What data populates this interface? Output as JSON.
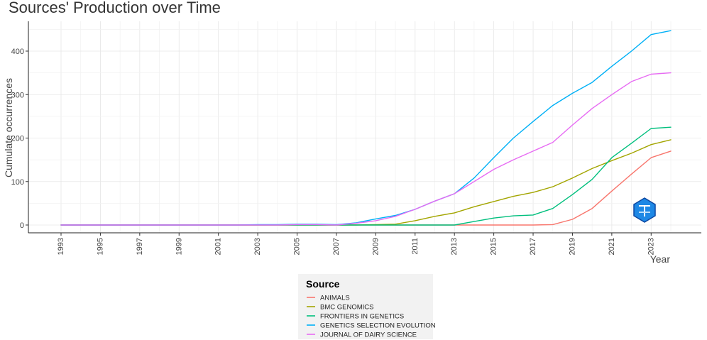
{
  "chart_data": {
    "type": "line",
    "title": "Sources' Production over Time",
    "xlabel": "Year",
    "ylabel": "Cumulate occurrences",
    "xlim": [
      1993,
      2024
    ],
    "ylim": [
      0,
      450
    ],
    "x_tick_labels": [
      "1993",
      "1995",
      "1997",
      "1999",
      "2001",
      "2003",
      "2005",
      "2007",
      "2009",
      "2011",
      "2013",
      "2015",
      "2017",
      "2019",
      "2021",
      "2023"
    ],
    "y_tick_labels": [
      "0",
      "100",
      "200",
      "300",
      "400"
    ],
    "grid": true,
    "legend": {
      "title": "Source",
      "position": "bottom"
    },
    "x": [
      1993,
      1994,
      1995,
      1996,
      1997,
      1998,
      1999,
      2000,
      2001,
      2002,
      2003,
      2004,
      2005,
      2006,
      2007,
      2008,
      2009,
      2010,
      2011,
      2012,
      2013,
      2014,
      2015,
      2016,
      2017,
      2018,
      2019,
      2020,
      2021,
      2022,
      2023,
      2024
    ],
    "series": [
      {
        "name": "ANIMALS",
        "color": "#F8766D",
        "values": [
          0,
          0,
          0,
          0,
          0,
          0,
          0,
          0,
          0,
          0,
          0,
          0,
          0,
          0,
          0,
          0,
          0,
          0,
          0,
          0,
          0,
          0,
          0,
          0,
          0,
          1,
          13,
          38,
          78,
          117,
          155,
          170
        ]
      },
      {
        "name": "BMC GENOMICS",
        "color": "#A3A500",
        "values": [
          0,
          0,
          0,
          0,
          0,
          0,
          0,
          0,
          0,
          0,
          0,
          0,
          0,
          0,
          0,
          0,
          1,
          2,
          10,
          20,
          28,
          42,
          54,
          66,
          75,
          88,
          108,
          130,
          148,
          165,
          185,
          196
        ]
      },
      {
        "name": "FRONTIERS IN GENETICS",
        "color": "#00BF7D",
        "values": [
          0,
          0,
          0,
          0,
          0,
          0,
          0,
          0,
          0,
          0,
          0,
          0,
          0,
          0,
          0,
          0,
          0,
          0,
          0,
          0,
          0,
          8,
          16,
          21,
          23,
          38,
          70,
          105,
          155,
          188,
          222,
          225
        ]
      },
      {
        "name": "GENETICS SELECTION EVOLUTION",
        "color": "#00B0F6",
        "values": [
          0,
          0,
          0,
          0,
          0,
          0,
          0,
          0,
          0,
          0,
          1,
          1,
          2,
          2,
          1,
          5,
          14,
          22,
          36,
          55,
          72,
          108,
          155,
          200,
          238,
          275,
          303,
          328,
          365,
          400,
          438,
          447
        ]
      },
      {
        "name": "JOURNAL OF DAIRY SCIENCE",
        "color": "#E76BF3",
        "values": [
          0,
          0,
          0,
          0,
          0,
          0,
          0,
          0,
          0,
          0,
          0,
          0,
          1,
          1,
          0,
          4,
          10,
          20,
          36,
          55,
          72,
          100,
          128,
          150,
          170,
          190,
          230,
          268,
          300,
          330,
          347,
          350
        ]
      }
    ]
  }
}
